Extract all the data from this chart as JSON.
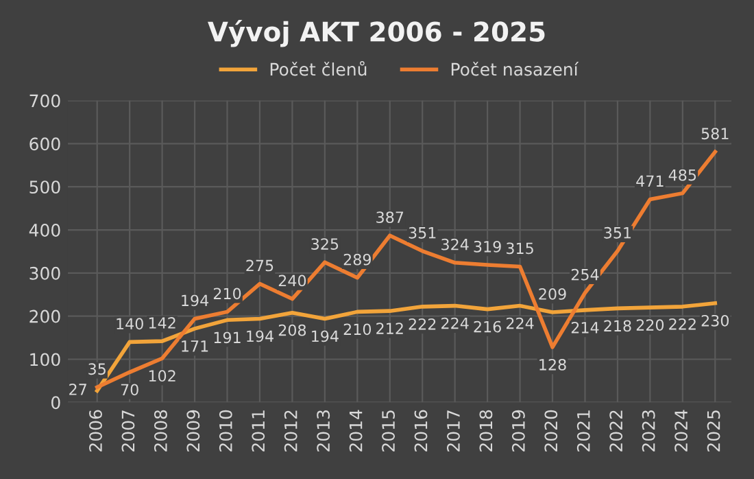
{
  "chart_data": {
    "type": "line",
    "title": "Vývoj AKT 2006 - 2025",
    "categories": [
      "2006",
      "2007",
      "2008",
      "2009",
      "2010",
      "2011",
      "2012",
      "2013",
      "2014",
      "2015",
      "2016",
      "2017",
      "2018",
      "2019",
      "2020",
      "2021",
      "2022",
      "2023",
      "2024",
      "2025"
    ],
    "series": [
      {
        "name": "Počet členů",
        "color": "#f2a43a",
        "values": [
          27,
          140,
          142,
          171,
          191,
          194,
          208,
          194,
          210,
          212,
          222,
          224,
          216,
          224,
          209,
          214,
          218,
          220,
          222,
          230
        ]
      },
      {
        "name": "Počet nasazení",
        "color": "#ed7d31",
        "values": [
          35,
          70,
          102,
          194,
          210,
          275,
          240,
          325,
          289,
          387,
          351,
          324,
          319,
          315,
          128,
          254,
          351,
          471,
          485,
          581
        ]
      }
    ],
    "ylim": [
      0,
      700
    ],
    "yticks": [
      0,
      100,
      200,
      300,
      400,
      500,
      600,
      700
    ],
    "grid": true,
    "legend": "top",
    "data_labels": true,
    "marker": "none",
    "line_style": "solid"
  }
}
